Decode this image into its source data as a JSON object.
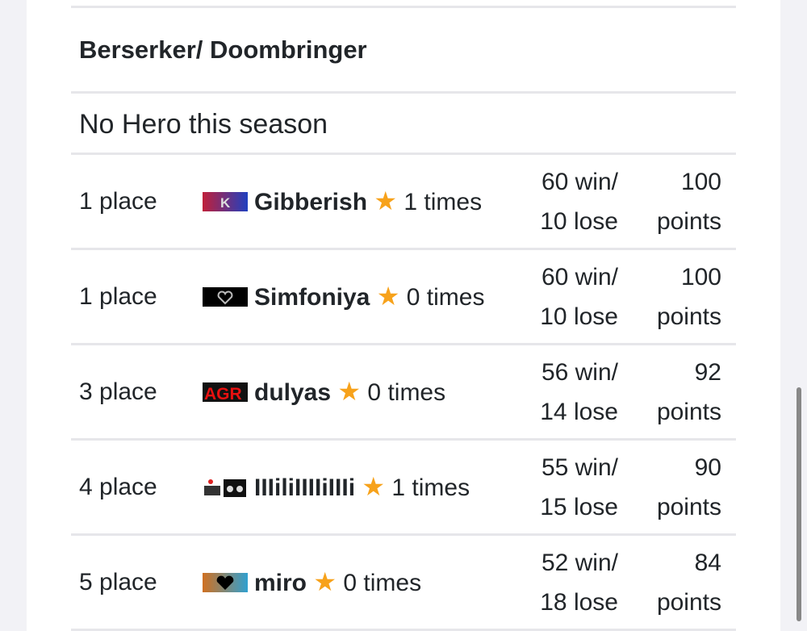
{
  "section_title": "Berserker/ Doombringer",
  "hero_text": "No Hero this season",
  "rows": [
    {
      "place": "1 place",
      "name": "Gibberish",
      "count": "1 times",
      "win": "60 win/",
      "lose": "10 lose",
      "points_value": "100",
      "points_label": "points",
      "emblem": "k-emblem"
    },
    {
      "place": "1 place",
      "name": "Simfoniya",
      "count": "0 times",
      "win": "60 win/",
      "lose": "10 lose",
      "points_value": "100",
      "points_label": "points",
      "emblem": "heart-emblem"
    },
    {
      "place": "3 place",
      "name": "dulyas",
      "count": "0 times",
      "win": "56 win/",
      "lose": "14 lose",
      "points_value": "92",
      "points_label": "points",
      "emblem": "agr-emblem"
    },
    {
      "place": "4 place",
      "name": "IIIiliIIIIiIIIi",
      "count": "1 times",
      "win": "55 win/",
      "lose": "15 lose",
      "points_value": "90",
      "points_label": "points",
      "emblem": "cat-emblem"
    },
    {
      "place": "5 place",
      "name": "miro",
      "count": "0 times",
      "win": "52 win/",
      "lose": "18 lose",
      "points_value": "84",
      "points_label": "points",
      "emblem": "fire-heart-emblem"
    }
  ],
  "colors": {
    "star": "#f7a21b",
    "divider": "#e6e6ea"
  }
}
